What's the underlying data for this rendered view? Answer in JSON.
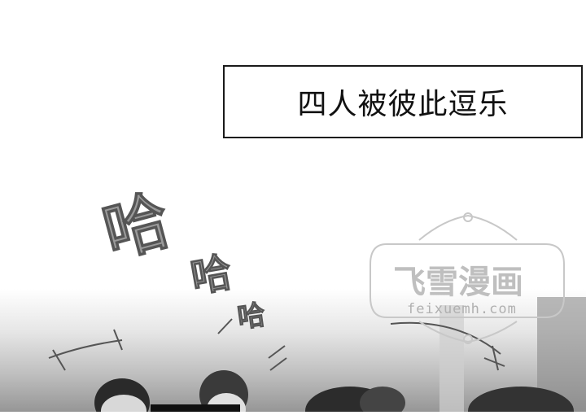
{
  "caption": {
    "text": "四人被彼此逗乐"
  },
  "sfx": {
    "laugh_large": "哈",
    "laugh_medium": "哈",
    "laugh_small": "哈"
  },
  "watermark": {
    "title": "飞雪漫画",
    "url": "feixuemh.com"
  },
  "colors": {
    "border": "#1a1a1a",
    "sfx_fill": "#9a9a9a",
    "watermark": "#bfbfbf"
  }
}
